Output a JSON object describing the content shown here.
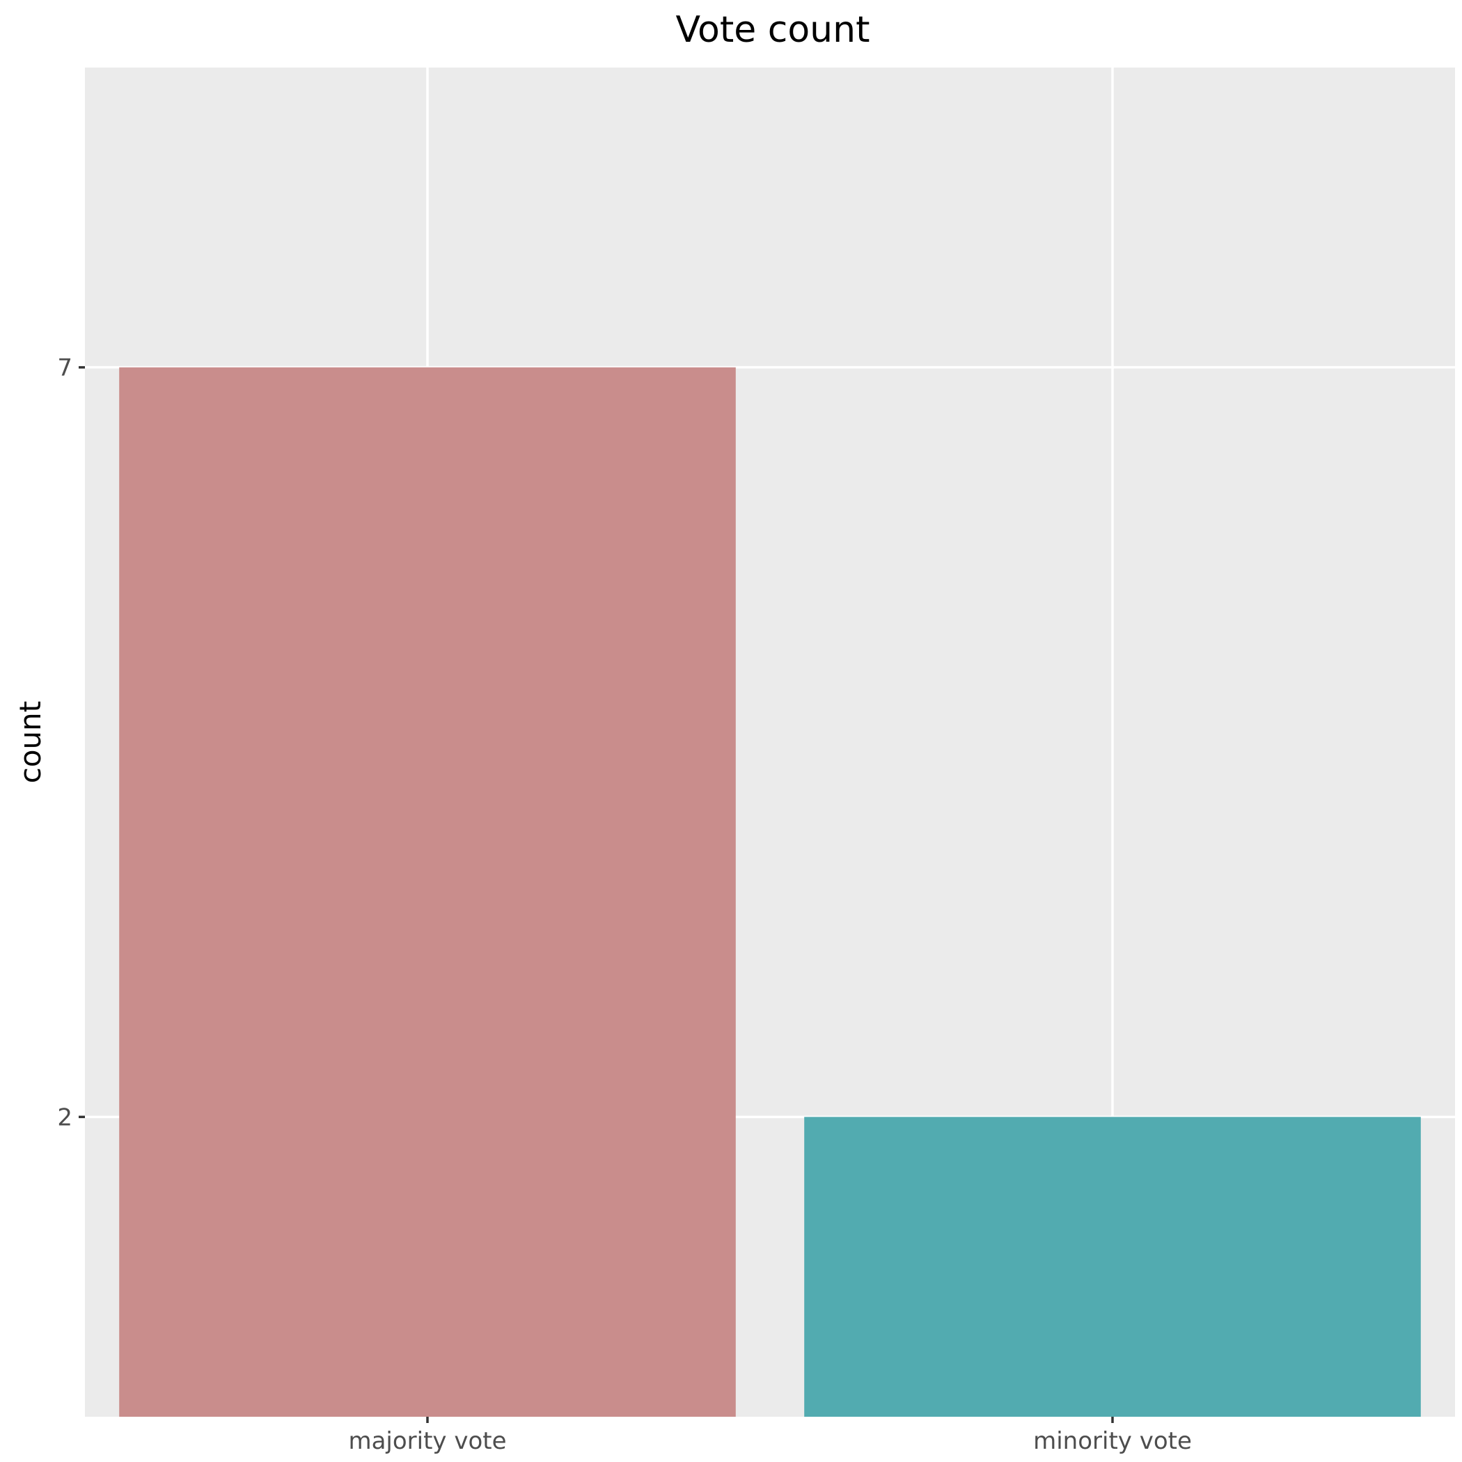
{
  "chart_data": {
    "type": "bar",
    "title": "Vote count",
    "xlabel": "",
    "ylabel": "count",
    "categories": [
      "majority vote",
      "minority vote"
    ],
    "values": [
      7,
      2
    ],
    "colors": [
      "#C98D8C",
      "#52ABB0"
    ],
    "yticks": [
      2,
      7
    ],
    "ylim": [
      0,
      9
    ],
    "grid": true,
    "panel_background": "#EBEBEB",
    "legend": "none"
  }
}
